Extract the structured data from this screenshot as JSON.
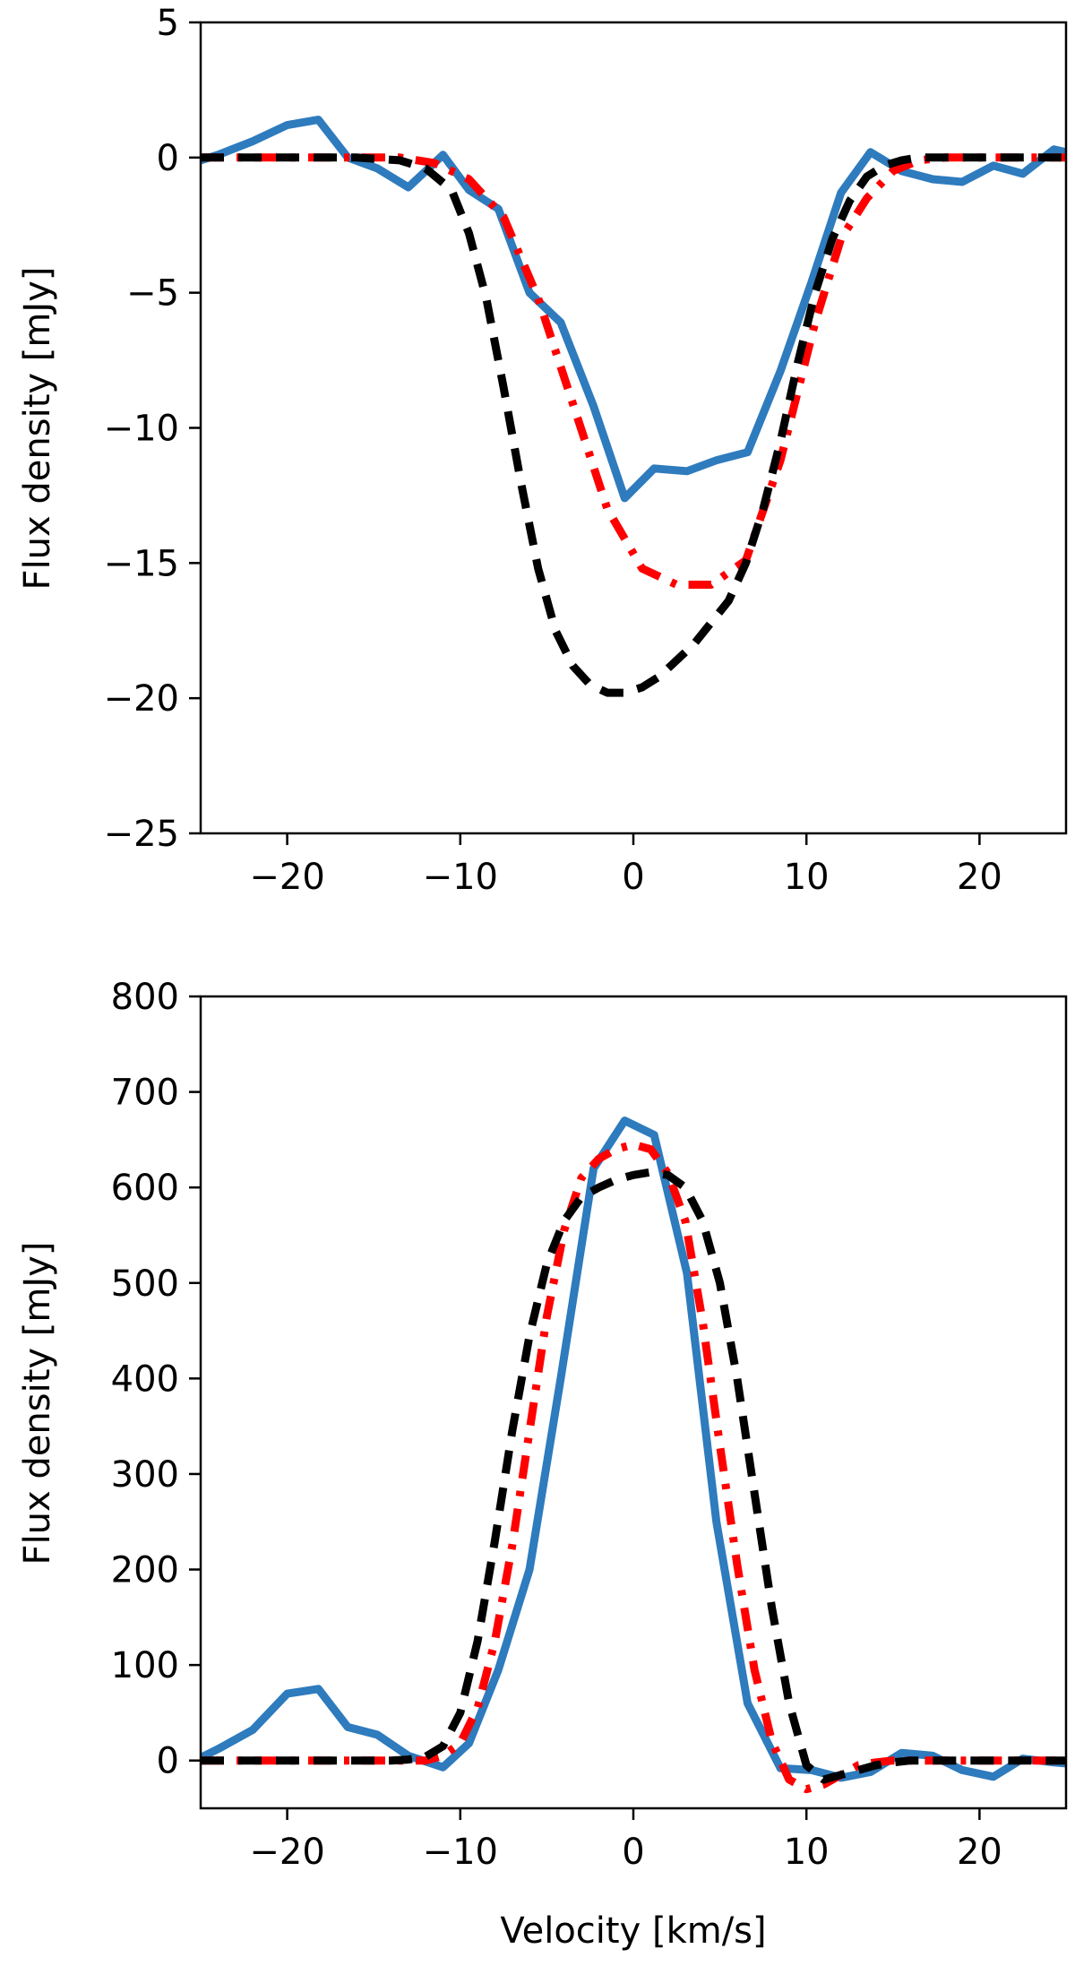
{
  "chart_data": [
    {
      "type": "line",
      "title": "",
      "xlabel": "",
      "ylabel": "Flux density [mJy]",
      "xlim": [
        -25,
        25
      ],
      "ylim": [
        -25,
        5
      ],
      "xticks": [
        -20,
        -10,
        0,
        10,
        20
      ],
      "yticks": [
        -25,
        -20,
        -15,
        -10,
        -5,
        0,
        5
      ],
      "xtick_labels": [
        "−20",
        "−10",
        "0",
        "10",
        "20"
      ],
      "ytick_labels": [
        "−25",
        "−20",
        "−15",
        "−10",
        "−5",
        "0",
        "5"
      ],
      "grid": false,
      "series": [
        {
          "style": "solid",
          "color": "#2e7bbd",
          "x": [
            -25,
            -24,
            -22,
            -20,
            -18.2,
            -16.5,
            -14.8,
            -13,
            -11,
            -9.5,
            -7.8,
            -6,
            -4.2,
            -2.3,
            -0.5,
            1.2,
            3.1,
            4.8,
            6.6,
            8.5,
            10.3,
            12,
            13.7,
            15.5,
            17.3,
            19,
            20.8,
            22.5,
            24.3,
            25
          ],
          "y": [
            -0.1,
            0.1,
            0.6,
            1.2,
            1.4,
            0,
            -0.4,
            -1.1,
            0.1,
            -1.2,
            -1.9,
            -5,
            -6.1,
            -9.2,
            -12.6,
            -11.5,
            -11.6,
            -11.2,
            -10.9,
            -7.9,
            -4.6,
            -1.3,
            0.2,
            -0.5,
            -0.8,
            -0.9,
            -0.3,
            -0.6,
            0.3,
            0.2
          ]
        },
        {
          "style": "dashdot",
          "color": "#ff0000",
          "x": [
            -25,
            -16,
            -13.5,
            -11.5,
            -9.5,
            -7.5,
            -5.5,
            -3.5,
            -1.5,
            0.5,
            2.5,
            4.5,
            6.5,
            8.5,
            10.5,
            12,
            13.5,
            15,
            16.5,
            18,
            25
          ],
          "y": [
            0,
            0,
            0,
            -0.2,
            -0.8,
            -2.2,
            -5.2,
            -9.1,
            -13,
            -15.2,
            -15.8,
            -15.8,
            -14.9,
            -11.2,
            -6.1,
            -3,
            -1.5,
            -0.5,
            -0.1,
            0,
            0
          ]
        },
        {
          "style": "dashed",
          "color": "#000000",
          "x": [
            -25,
            -16,
            -13.5,
            -12,
            -10.5,
            -9.5,
            -8.5,
            -7.5,
            -6.5,
            -5.5,
            -4.5,
            -3.5,
            -2.5,
            -1.5,
            -0.5,
            0.5,
            1.5,
            2.5,
            3.5,
            4.5,
            5.5,
            6.5,
            7.5,
            8.5,
            9.5,
            10.5,
            11.5,
            12.5,
            13.5,
            14.5,
            15.5,
            16.5,
            18,
            25
          ],
          "y": [
            0,
            0,
            -0.1,
            -0.4,
            -1.2,
            -2.8,
            -5.2,
            -8.5,
            -12,
            -15.2,
            -17.5,
            -18.8,
            -19.5,
            -19.8,
            -19.8,
            -19.6,
            -19.2,
            -18.6,
            -18,
            -17.2,
            -16.4,
            -15,
            -13,
            -10.5,
            -7.6,
            -5,
            -3,
            -1.6,
            -0.7,
            -0.3,
            -0.1,
            0,
            0,
            0
          ]
        }
      ]
    },
    {
      "type": "line",
      "title": "",
      "xlabel": "Velocity [km/s]",
      "ylabel": "Flux density [mJy]",
      "xlim": [
        -25,
        25
      ],
      "ylim": [
        -50,
        800
      ],
      "xticks": [
        -20,
        -10,
        0,
        10,
        20
      ],
      "yticks": [
        0,
        100,
        200,
        300,
        400,
        500,
        600,
        700,
        800
      ],
      "xtick_labels": [
        "−20",
        "−10",
        "0",
        "10",
        "20"
      ],
      "ytick_labels": [
        "0",
        "100",
        "200",
        "300",
        "400",
        "500",
        "600",
        "700",
        "800"
      ],
      "grid": false,
      "series": [
        {
          "style": "solid",
          "color": "#2e7bbd",
          "x": [
            -25,
            -24,
            -22,
            -20,
            -18.2,
            -16.5,
            -14.8,
            -13,
            -11,
            -9.5,
            -7.8,
            -6,
            -4.2,
            -2.3,
            -0.5,
            1.2,
            3.1,
            4.8,
            6.6,
            8.5,
            10.3,
            12,
            13.7,
            15.5,
            17.3,
            19,
            20.8,
            22.5,
            24.3,
            25
          ],
          "y": [
            3,
            12,
            32,
            70,
            75,
            35,
            27,
            5,
            -7,
            18,
            95,
            200,
            400,
            620,
            670,
            655,
            510,
            250,
            60,
            -8,
            -10,
            -18,
            -12,
            8,
            5,
            -10,
            -17,
            2,
            -2,
            -3
          ],
          "note_": ""
        },
        {
          "style": "dashdot",
          "color": "#ff0000",
          "x": [
            -25,
            -15,
            -13,
            -12,
            -11,
            -10,
            -9,
            -8,
            -7,
            -6,
            -5,
            -4,
            -3,
            -2,
            -1,
            0,
            1,
            2,
            3,
            4,
            5,
            6,
            7,
            8,
            9,
            10,
            11,
            12,
            13,
            14,
            15,
            16,
            17,
            25
          ],
          "y": [
            0,
            0,
            0,
            0,
            5,
            18,
            55,
            125,
            225,
            345,
            465,
            555,
            610,
            630,
            640,
            645,
            640,
            615,
            565,
            460,
            330,
            205,
            95,
            20,
            -20,
            -30,
            -25,
            -15,
            -5,
            -2,
            0,
            0,
            0,
            0
          ]
        },
        {
          "style": "dashed",
          "color": "#000000",
          "x": [
            -25,
            -15,
            -14,
            -13,
            -12,
            -11,
            -10,
            -9,
            -8,
            -7,
            -6,
            -5,
            -4,
            -3,
            -2,
            -1,
            0,
            1,
            2,
            3,
            4,
            5,
            6,
            7,
            8,
            9,
            10,
            11,
            12,
            13,
            14,
            15,
            16,
            17,
            25
          ],
          "y": [
            0,
            0,
            0,
            1,
            4,
            15,
            50,
            125,
            230,
            345,
            445,
            520,
            565,
            590,
            600,
            608,
            613,
            616,
            613,
            600,
            565,
            500,
            400,
            280,
            160,
            60,
            -5,
            -20,
            -15,
            -10,
            -5,
            -2,
            0,
            0,
            0
          ]
        }
      ]
    }
  ]
}
